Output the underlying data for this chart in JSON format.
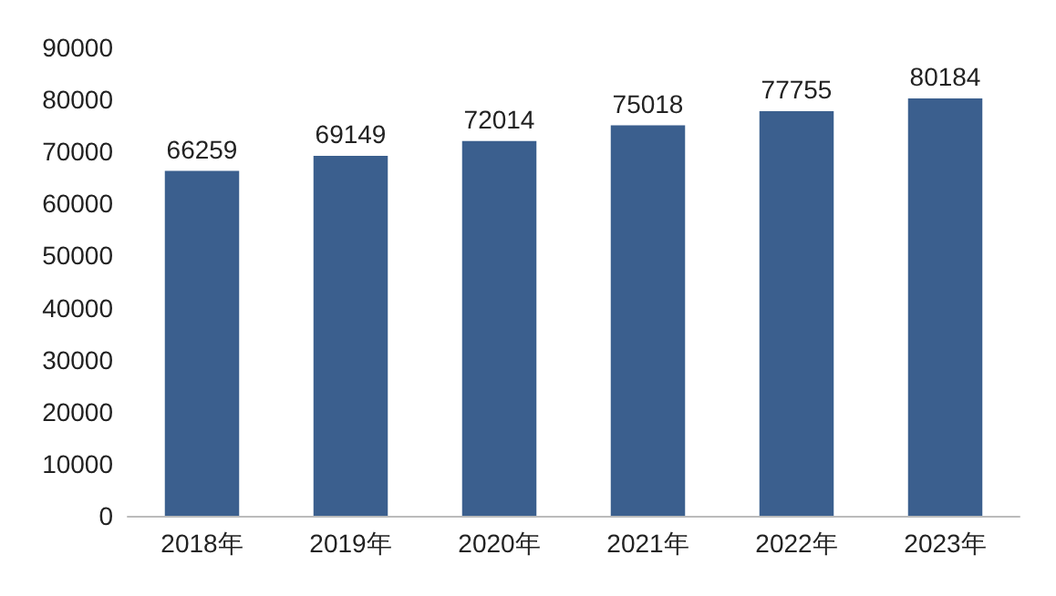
{
  "chart_data": {
    "type": "bar",
    "categories": [
      "2018年",
      "2019年",
      "2020年",
      "2021年",
      "2022年",
      "2023年"
    ],
    "values": [
      66259,
      69149,
      72014,
      75018,
      77755,
      80184
    ],
    "color": "#3b5f8e",
    "ylim": [
      0,
      90000
    ],
    "yticks": [
      0,
      10000,
      20000,
      30000,
      40000,
      50000,
      60000,
      70000,
      80000,
      90000
    ],
    "data_labels": true
  }
}
